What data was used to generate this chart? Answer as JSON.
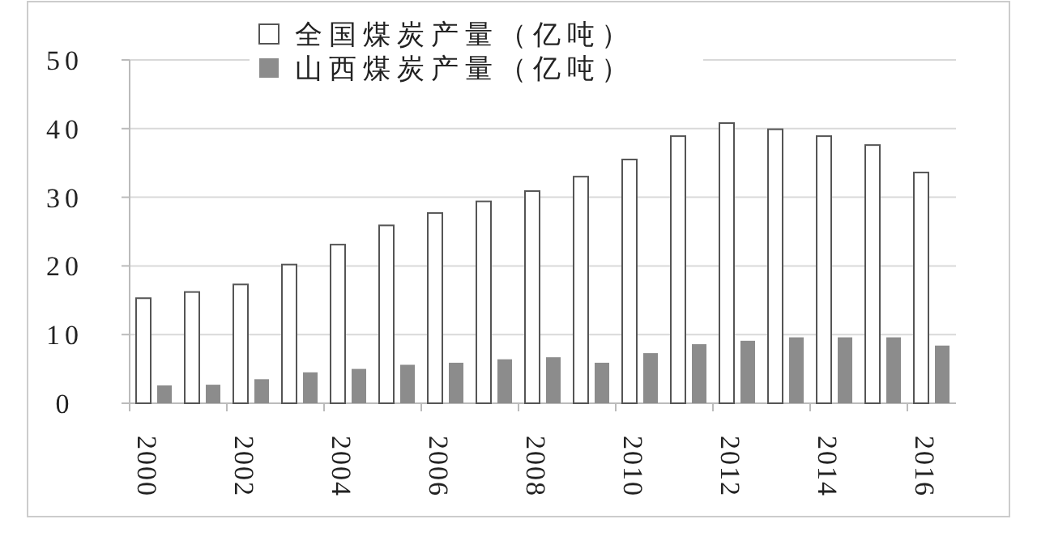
{
  "chart_data": {
    "type": "bar",
    "categories": [
      "2000",
      null,
      "2002",
      null,
      "2004",
      null,
      "2006",
      null,
      "2008",
      null,
      "2010",
      null,
      "2012",
      null,
      "2014",
      null,
      "2016"
    ],
    "series": [
      {
        "name": "全国煤炭产量（亿吨）",
        "color": "#ffffff",
        "values": [
          15.3,
          16.2,
          17.3,
          20.2,
          23.1,
          25.9,
          27.7,
          29.4,
          30.9,
          33.0,
          35.5,
          38.9,
          40.8,
          39.9,
          38.9,
          37.6,
          33.6
        ]
      },
      {
        "name": "山西煤炭产量（亿吨）",
        "color": "#8c8c8c",
        "values": [
          2.6,
          2.7,
          3.5,
          4.5,
          5.0,
          5.6,
          5.9,
          6.4,
          6.7,
          5.9,
          7.3,
          8.6,
          9.1,
          9.6,
          9.6,
          9.6,
          8.4
        ]
      }
    ],
    "ylim": [
      0,
      50
    ],
    "yticks": [
      0,
      10,
      20,
      30,
      40,
      50
    ],
    "grid": "y",
    "legend": "top"
  }
}
